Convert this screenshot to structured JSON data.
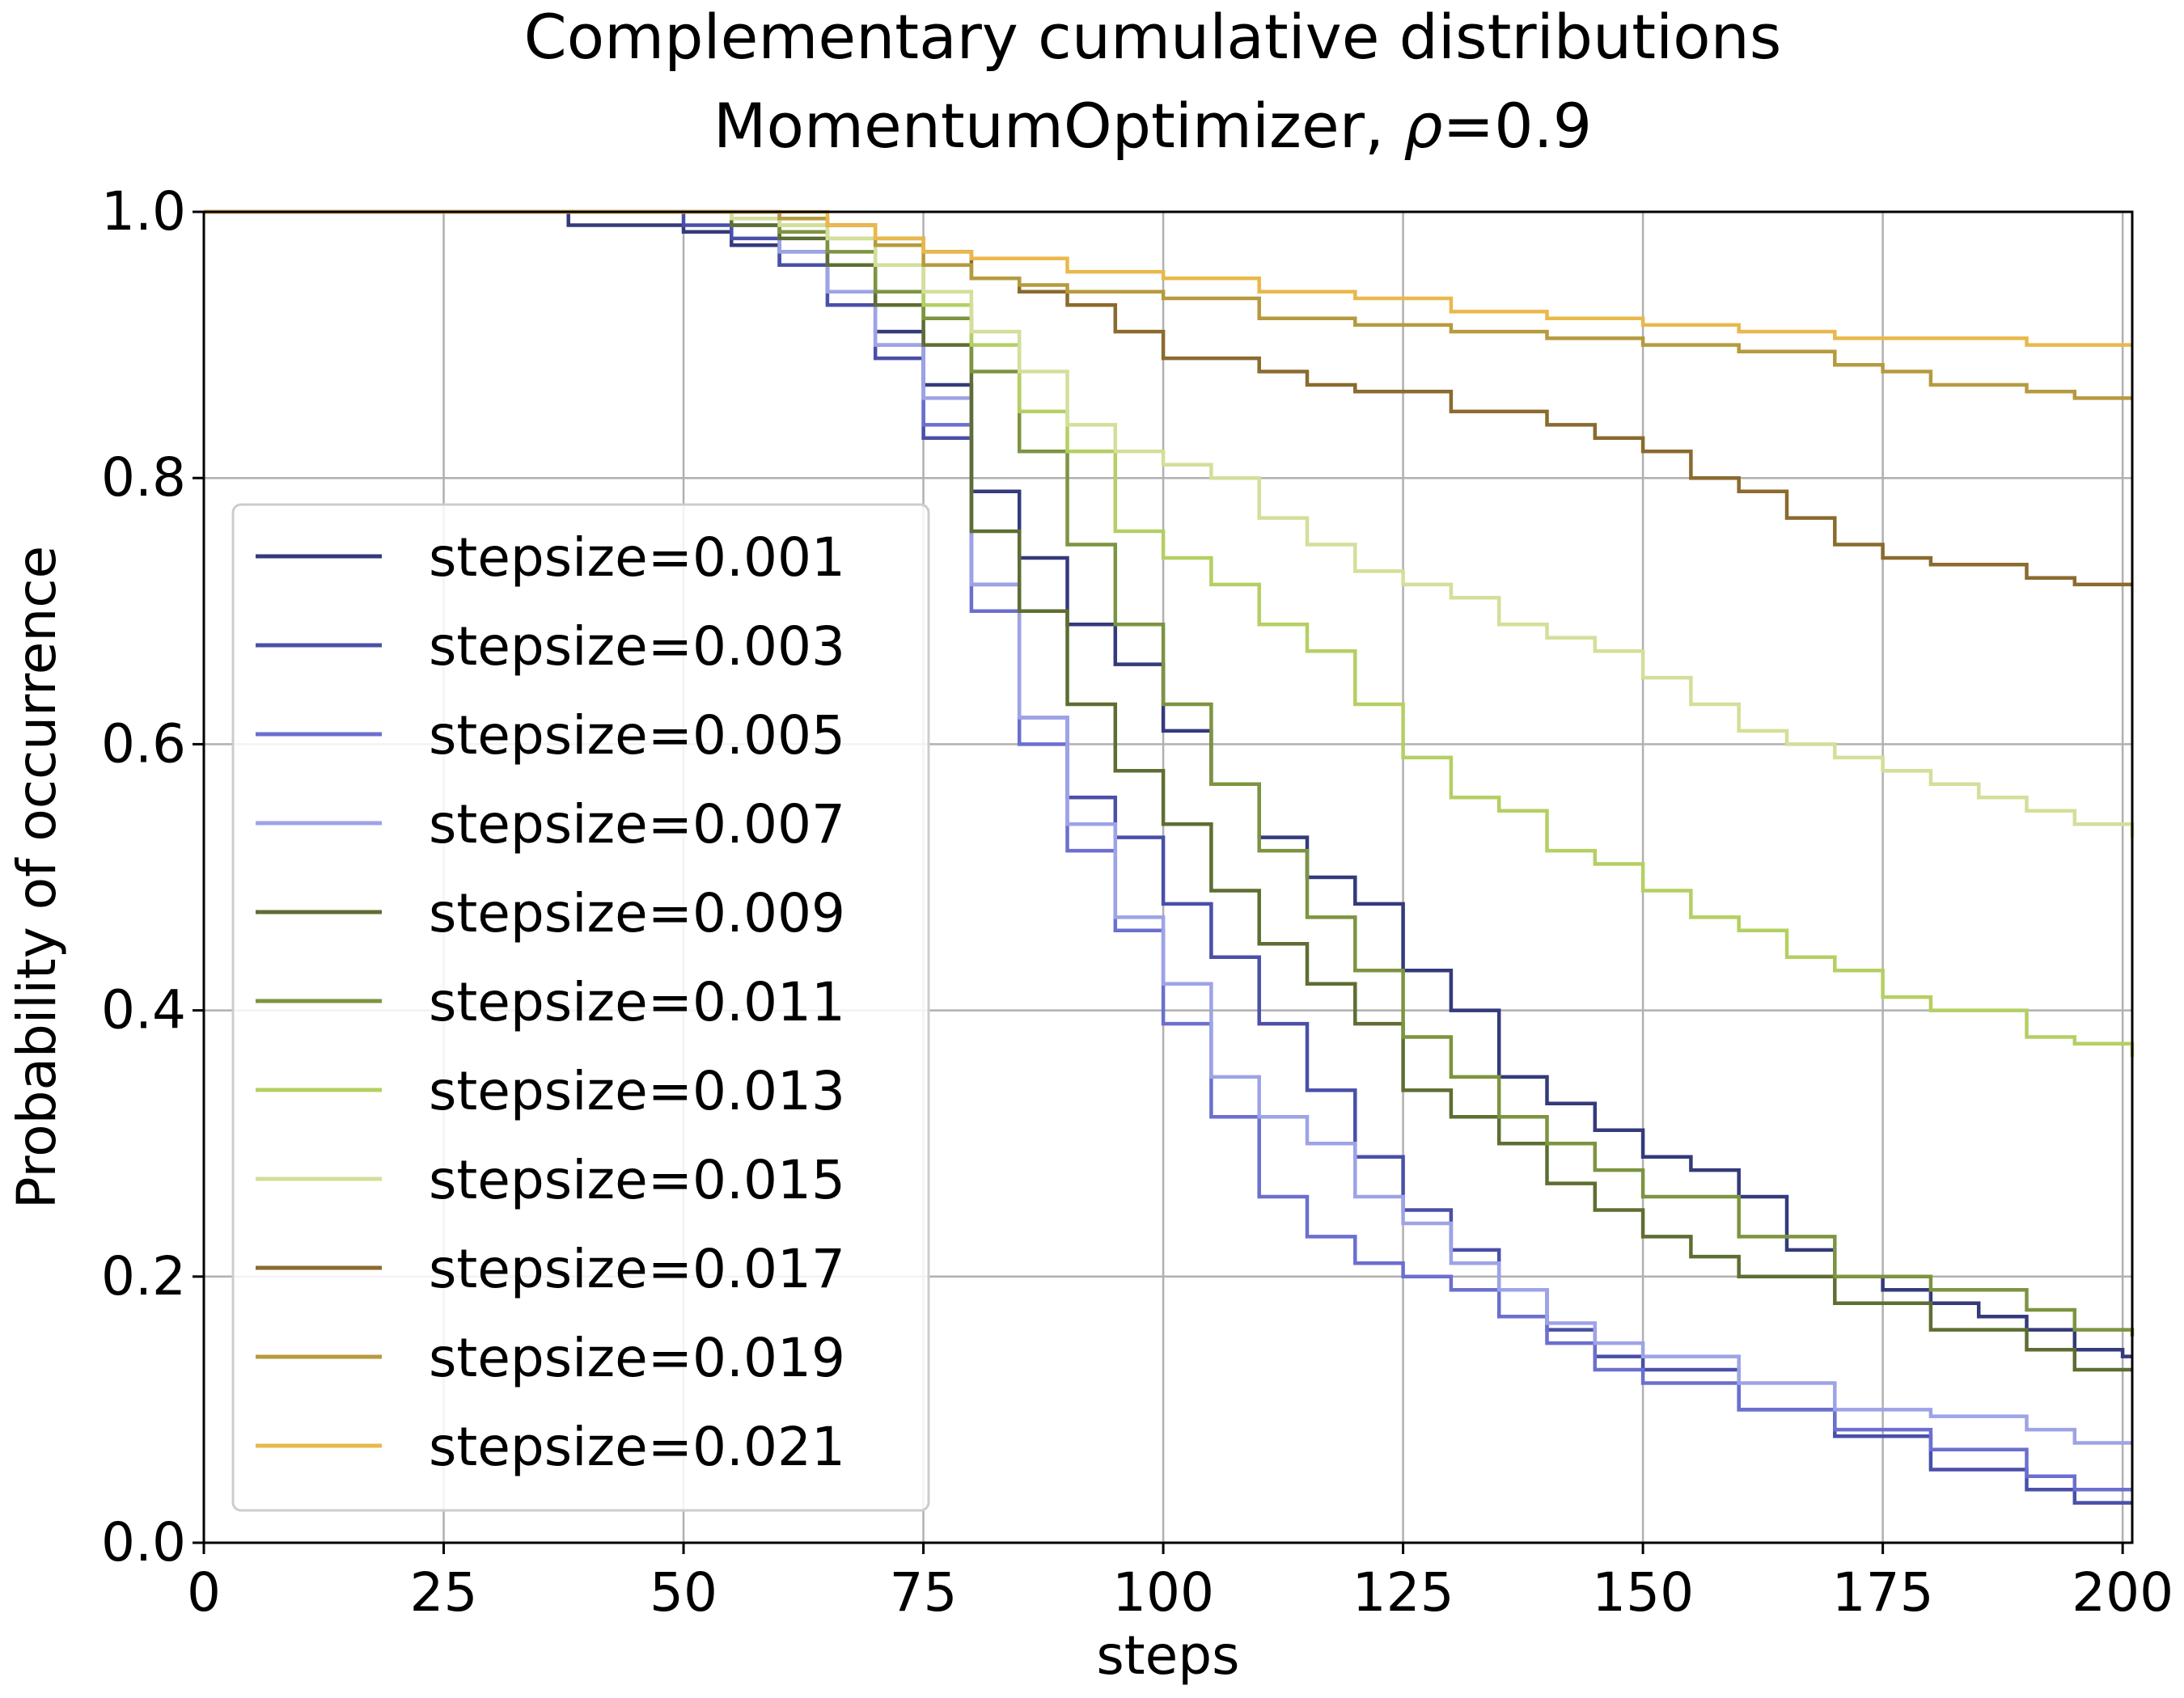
{
  "chart_data": {
    "type": "line",
    "title": "Complementary cumulative distributions",
    "subtitle_prefix": "MomentumOptimizer, ",
    "subtitle_symbol": "ρ",
    "subtitle_suffix": "=0.9",
    "xlabel": "steps",
    "ylabel": "Probability of occurrence",
    "xlim": [
      0,
      201
    ],
    "ylim": [
      0.0,
      1.0
    ],
    "xticks": [
      "0",
      "25",
      "50",
      "75",
      "100",
      "125",
      "150",
      "175",
      "200"
    ],
    "yticks": [
      "0.0",
      "0.2",
      "0.4",
      "0.6",
      "0.8",
      "1.0"
    ],
    "grid": true,
    "legend_position": "center-left",
    "series": [
      {
        "name": "stepsize=0.001",
        "color": "#343a7a",
        "points": [
          [
            0,
            1.0
          ],
          [
            35,
            1.0
          ],
          [
            38,
            0.99
          ],
          [
            50,
            0.985
          ],
          [
            55,
            0.975
          ],
          [
            60,
            0.96
          ],
          [
            65,
            0.94
          ],
          [
            70,
            0.91
          ],
          [
            75,
            0.87
          ],
          [
            80,
            0.79
          ],
          [
            85,
            0.74
          ],
          [
            90,
            0.69
          ],
          [
            95,
            0.66
          ],
          [
            100,
            0.61
          ],
          [
            105,
            0.57
          ],
          [
            110,
            0.53
          ],
          [
            115,
            0.5
          ],
          [
            120,
            0.48
          ],
          [
            125,
            0.43
          ],
          [
            130,
            0.4
          ],
          [
            135,
            0.35
          ],
          [
            140,
            0.33
          ],
          [
            145,
            0.31
          ],
          [
            150,
            0.29
          ],
          [
            155,
            0.28
          ],
          [
            160,
            0.26
          ],
          [
            165,
            0.22
          ],
          [
            170,
            0.2
          ],
          [
            175,
            0.19
          ],
          [
            180,
            0.18
          ],
          [
            185,
            0.17
          ],
          [
            190,
            0.16
          ],
          [
            195,
            0.145
          ],
          [
            200,
            0.14
          ],
          [
            201,
            0.14
          ]
        ]
      },
      {
        "name": "stepsize=0.003",
        "color": "#4a4fa8",
        "points": [
          [
            0,
            1.0
          ],
          [
            45,
            1.0
          ],
          [
            50,
            0.99
          ],
          [
            55,
            0.98
          ],
          [
            60,
            0.96
          ],
          [
            65,
            0.93
          ],
          [
            70,
            0.89
          ],
          [
            75,
            0.83
          ],
          [
            80,
            0.72
          ],
          [
            85,
            0.62
          ],
          [
            90,
            0.56
          ],
          [
            95,
            0.53
          ],
          [
            100,
            0.48
          ],
          [
            105,
            0.44
          ],
          [
            110,
            0.39
          ],
          [
            115,
            0.34
          ],
          [
            120,
            0.29
          ],
          [
            125,
            0.25
          ],
          [
            130,
            0.22
          ],
          [
            135,
            0.19
          ],
          [
            140,
            0.16
          ],
          [
            145,
            0.14
          ],
          [
            150,
            0.13
          ],
          [
            160,
            0.1
          ],
          [
            170,
            0.08
          ],
          [
            180,
            0.055
          ],
          [
            190,
            0.04
          ],
          [
            195,
            0.03
          ],
          [
            201,
            0.03
          ]
        ]
      },
      {
        "name": "stepsize=0.005",
        "color": "#6b6fcf",
        "points": [
          [
            0,
            1.0
          ],
          [
            50,
            1.0
          ],
          [
            55,
            0.99
          ],
          [
            60,
            0.97
          ],
          [
            65,
            0.94
          ],
          [
            70,
            0.9
          ],
          [
            75,
            0.84
          ],
          [
            80,
            0.7
          ],
          [
            85,
            0.6
          ],
          [
            90,
            0.52
          ],
          [
            95,
            0.46
          ],
          [
            100,
            0.39
          ],
          [
            105,
            0.32
          ],
          [
            110,
            0.26
          ],
          [
            115,
            0.23
          ],
          [
            120,
            0.21
          ],
          [
            125,
            0.2
          ],
          [
            130,
            0.19
          ],
          [
            135,
            0.17
          ],
          [
            140,
            0.15
          ],
          [
            145,
            0.13
          ],
          [
            150,
            0.12
          ],
          [
            160,
            0.1
          ],
          [
            170,
            0.085
          ],
          [
            180,
            0.07
          ],
          [
            190,
            0.05
          ],
          [
            195,
            0.04
          ],
          [
            201,
            0.04
          ]
        ]
      },
      {
        "name": "stepsize=0.007",
        "color": "#9ea3e6",
        "points": [
          [
            0,
            1.0
          ],
          [
            50,
            1.0
          ],
          [
            55,
            0.99
          ],
          [
            60,
            0.97
          ],
          [
            65,
            0.94
          ],
          [
            70,
            0.9
          ],
          [
            75,
            0.86
          ],
          [
            80,
            0.72
          ],
          [
            85,
            0.62
          ],
          [
            90,
            0.54
          ],
          [
            95,
            0.47
          ],
          [
            100,
            0.42
          ],
          [
            105,
            0.35
          ],
          [
            110,
            0.32
          ],
          [
            115,
            0.3
          ],
          [
            120,
            0.26
          ],
          [
            125,
            0.24
          ],
          [
            130,
            0.21
          ],
          [
            135,
            0.19
          ],
          [
            140,
            0.165
          ],
          [
            145,
            0.15
          ],
          [
            150,
            0.14
          ],
          [
            160,
            0.12
          ],
          [
            170,
            0.1
          ],
          [
            180,
            0.095
          ],
          [
            190,
            0.085
          ],
          [
            195,
            0.075
          ],
          [
            201,
            0.075
          ]
        ]
      },
      {
        "name": "stepsize=0.009",
        "color": "#5e6e32",
        "points": [
          [
            0,
            1.0
          ],
          [
            50,
            1.0
          ],
          [
            55,
            0.99
          ],
          [
            60,
            0.98
          ],
          [
            65,
            0.96
          ],
          [
            70,
            0.93
          ],
          [
            75,
            0.9
          ],
          [
            80,
            0.76
          ],
          [
            85,
            0.7
          ],
          [
            90,
            0.63
          ],
          [
            95,
            0.58
          ],
          [
            100,
            0.54
          ],
          [
            105,
            0.49
          ],
          [
            110,
            0.45
          ],
          [
            115,
            0.42
          ],
          [
            120,
            0.39
          ],
          [
            125,
            0.34
          ],
          [
            130,
            0.32
          ],
          [
            135,
            0.3
          ],
          [
            140,
            0.27
          ],
          [
            145,
            0.25
          ],
          [
            150,
            0.23
          ],
          [
            155,
            0.215
          ],
          [
            160,
            0.2
          ],
          [
            170,
            0.18
          ],
          [
            180,
            0.16
          ],
          [
            190,
            0.145
          ],
          [
            195,
            0.13
          ],
          [
            201,
            0.13
          ]
        ]
      },
      {
        "name": "stepsize=0.011",
        "color": "#7d9440",
        "points": [
          [
            0,
            1.0
          ],
          [
            50,
            1.0
          ],
          [
            55,
            0.995
          ],
          [
            60,
            0.985
          ],
          [
            65,
            0.97
          ],
          [
            70,
            0.94
          ],
          [
            75,
            0.92
          ],
          [
            80,
            0.88
          ],
          [
            85,
            0.82
          ],
          [
            90,
            0.75
          ],
          [
            95,
            0.69
          ],
          [
            100,
            0.63
          ],
          [
            105,
            0.57
          ],
          [
            110,
            0.52
          ],
          [
            115,
            0.47
          ],
          [
            120,
            0.43
          ],
          [
            125,
            0.38
          ],
          [
            130,
            0.35
          ],
          [
            135,
            0.32
          ],
          [
            140,
            0.3
          ],
          [
            145,
            0.28
          ],
          [
            150,
            0.26
          ],
          [
            160,
            0.23
          ],
          [
            170,
            0.2
          ],
          [
            180,
            0.19
          ],
          [
            190,
            0.175
          ],
          [
            195,
            0.16
          ],
          [
            201,
            0.155
          ]
        ]
      },
      {
        "name": "stepsize=0.013",
        "color": "#b4cf62",
        "points": [
          [
            0,
            1.0
          ],
          [
            50,
            1.0
          ],
          [
            55,
            0.995
          ],
          [
            60,
            0.99
          ],
          [
            65,
            0.98
          ],
          [
            70,
            0.96
          ],
          [
            75,
            0.93
          ],
          [
            80,
            0.9
          ],
          [
            85,
            0.85
          ],
          [
            90,
            0.82
          ],
          [
            95,
            0.76
          ],
          [
            100,
            0.74
          ],
          [
            105,
            0.72
          ],
          [
            110,
            0.69
          ],
          [
            115,
            0.67
          ],
          [
            120,
            0.63
          ],
          [
            125,
            0.59
          ],
          [
            130,
            0.56
          ],
          [
            135,
            0.55
          ],
          [
            140,
            0.52
          ],
          [
            145,
            0.51
          ],
          [
            150,
            0.49
          ],
          [
            155,
            0.47
          ],
          [
            160,
            0.46
          ],
          [
            165,
            0.44
          ],
          [
            170,
            0.43
          ],
          [
            175,
            0.41
          ],
          [
            180,
            0.4
          ],
          [
            190,
            0.38
          ],
          [
            195,
            0.375
          ],
          [
            201,
            0.365
          ]
        ]
      },
      {
        "name": "stepsize=0.015",
        "color": "#d3df9a",
        "points": [
          [
            0,
            1.0
          ],
          [
            50,
            1.0
          ],
          [
            55,
            0.995
          ],
          [
            60,
            0.99
          ],
          [
            65,
            0.98
          ],
          [
            70,
            0.96
          ],
          [
            75,
            0.94
          ],
          [
            80,
            0.91
          ],
          [
            85,
            0.88
          ],
          [
            90,
            0.84
          ],
          [
            95,
            0.82
          ],
          [
            100,
            0.81
          ],
          [
            105,
            0.8
          ],
          [
            110,
            0.77
          ],
          [
            115,
            0.75
          ],
          [
            120,
            0.73
          ],
          [
            125,
            0.72
          ],
          [
            130,
            0.71
          ],
          [
            135,
            0.69
          ],
          [
            140,
            0.68
          ],
          [
            145,
            0.67
          ],
          [
            150,
            0.65
          ],
          [
            155,
            0.63
          ],
          [
            160,
            0.61
          ],
          [
            165,
            0.6
          ],
          [
            170,
            0.59
          ],
          [
            175,
            0.58
          ],
          [
            180,
            0.57
          ],
          [
            185,
            0.56
          ],
          [
            190,
            0.55
          ],
          [
            195,
            0.54
          ],
          [
            201,
            0.53
          ]
        ]
      },
      {
        "name": "stepsize=0.017",
        "color": "#8a6a2e",
        "points": [
          [
            0,
            1.0
          ],
          [
            55,
            1.0
          ],
          [
            60,
            0.995
          ],
          [
            65,
            0.99
          ],
          [
            70,
            0.98
          ],
          [
            75,
            0.97
          ],
          [
            80,
            0.95
          ],
          [
            85,
            0.94
          ],
          [
            90,
            0.93
          ],
          [
            95,
            0.91
          ],
          [
            100,
            0.89
          ],
          [
            110,
            0.88
          ],
          [
            115,
            0.87
          ],
          [
            120,
            0.865
          ],
          [
            130,
            0.85
          ],
          [
            140,
            0.84
          ],
          [
            145,
            0.83
          ],
          [
            150,
            0.82
          ],
          [
            155,
            0.8
          ],
          [
            160,
            0.79
          ],
          [
            165,
            0.77
          ],
          [
            170,
            0.75
          ],
          [
            175,
            0.74
          ],
          [
            180,
            0.735
          ],
          [
            190,
            0.725
          ],
          [
            195,
            0.72
          ],
          [
            201,
            0.72
          ]
        ]
      },
      {
        "name": "stepsize=0.019",
        "color": "#b69a3e",
        "points": [
          [
            0,
            1.0
          ],
          [
            55,
            1.0
          ],
          [
            60,
            0.995
          ],
          [
            65,
            0.99
          ],
          [
            70,
            0.975
          ],
          [
            75,
            0.96
          ],
          [
            80,
            0.95
          ],
          [
            85,
            0.945
          ],
          [
            90,
            0.94
          ],
          [
            100,
            0.935
          ],
          [
            110,
            0.92
          ],
          [
            120,
            0.915
          ],
          [
            130,
            0.91
          ],
          [
            140,
            0.905
          ],
          [
            150,
            0.9
          ],
          [
            160,
            0.895
          ],
          [
            170,
            0.885
          ],
          [
            175,
            0.88
          ],
          [
            180,
            0.87
          ],
          [
            190,
            0.865
          ],
          [
            195,
            0.86
          ],
          [
            201,
            0.86
          ]
        ]
      },
      {
        "name": "stepsize=0.021",
        "color": "#e9b84c",
        "points": [
          [
            0,
            1.0
          ],
          [
            60,
            1.0
          ],
          [
            65,
            0.99
          ],
          [
            70,
            0.98
          ],
          [
            75,
            0.97
          ],
          [
            80,
            0.965
          ],
          [
            90,
            0.955
          ],
          [
            100,
            0.95
          ],
          [
            110,
            0.94
          ],
          [
            120,
            0.935
          ],
          [
            130,
            0.925
          ],
          [
            140,
            0.92
          ],
          [
            150,
            0.915
          ],
          [
            160,
            0.91
          ],
          [
            170,
            0.905
          ],
          [
            180,
            0.905
          ],
          [
            190,
            0.9
          ],
          [
            201,
            0.9
          ]
        ]
      }
    ]
  }
}
